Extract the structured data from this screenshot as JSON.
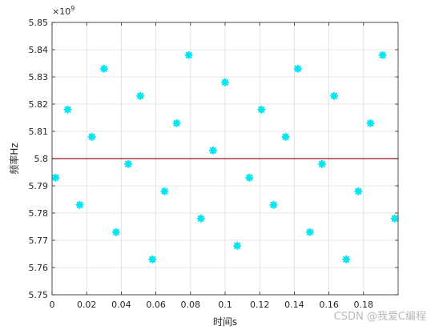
{
  "chart_data": {
    "type": "scatter",
    "xlabel": "时间s",
    "ylabel": "频率Hz",
    "y_exponent_label": "×10",
    "y_exponent_power": "9",
    "xlim": [
      0,
      0.2
    ],
    "ylim": [
      5.75,
      5.85
    ],
    "grid": true,
    "x_ticks": [
      "0",
      "0.02",
      "0.04",
      "0.06",
      "0.08",
      "0.1",
      "0.12",
      "0.14",
      "0.16",
      "0.18"
    ],
    "x_tick_values": [
      0,
      0.02,
      0.04,
      0.06,
      0.08,
      0.1,
      0.12,
      0.14,
      0.16,
      0.18
    ],
    "y_ticks": [
      "5.75",
      "5.76",
      "5.77",
      "5.78",
      "5.79",
      "5.8",
      "5.81",
      "5.82",
      "5.83",
      "5.84",
      "5.85"
    ],
    "y_tick_values": [
      5.75,
      5.76,
      5.77,
      5.78,
      5.79,
      5.8,
      5.81,
      5.82,
      5.83,
      5.84,
      5.85
    ],
    "series": [
      {
        "marker": "asterisk",
        "color": "#00e5ee",
        "x": [
          0.002,
          0.009,
          0.016,
          0.023,
          0.03,
          0.037,
          0.044,
          0.051,
          0.058,
          0.065,
          0.072,
          0.079,
          0.086,
          0.093,
          0.1,
          0.107,
          0.114,
          0.121,
          0.128,
          0.135,
          0.142,
          0.149,
          0.156,
          0.163,
          0.17,
          0.177,
          0.184,
          0.191,
          0.198
        ],
        "y": [
          5.793,
          5.818,
          5.783,
          5.808,
          5.833,
          5.773,
          5.798,
          5.823,
          5.763,
          5.788,
          5.813,
          5.838,
          5.778,
          5.803,
          5.828,
          5.768,
          5.793,
          5.818,
          5.783,
          5.808,
          5.833,
          5.773,
          5.798,
          5.823,
          5.763,
          5.788,
          5.813,
          5.838,
          5.778
        ]
      },
      {
        "marker": "line",
        "color": "#a0151e",
        "x": [
          0,
          0.2
        ],
        "y": [
          5.8,
          5.8
        ]
      }
    ]
  },
  "watermark": "CSDN @我爱C编程"
}
